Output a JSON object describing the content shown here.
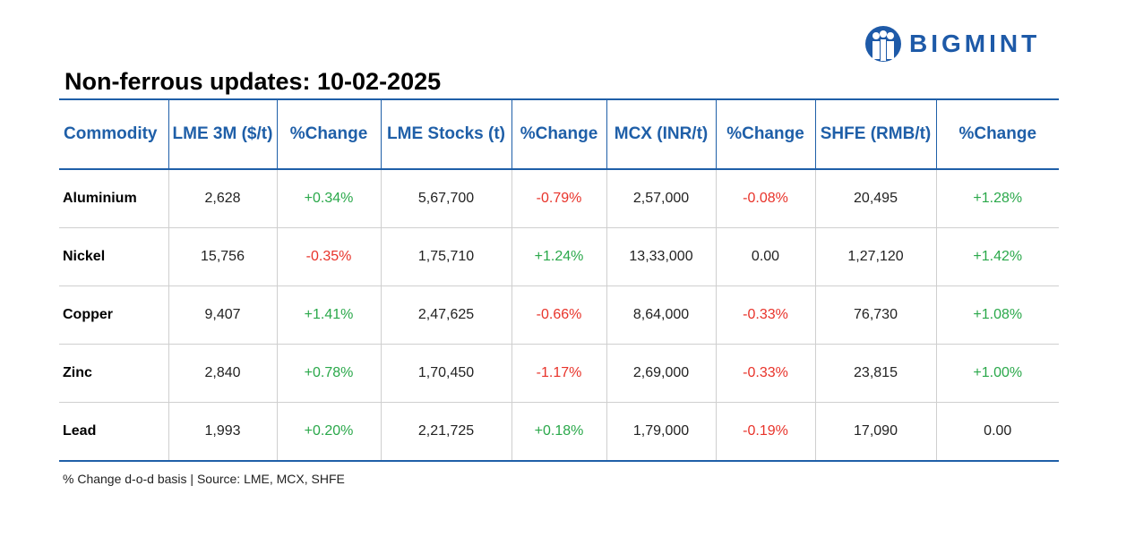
{
  "logo": "BIGMINT",
  "title": "Non-ferrous updates: 10-02-2025",
  "table": {
    "header": [
      "Commodity",
      "LME 3M ($/t)",
      "%Change",
      "LME Stocks (t)",
      "%Change",
      "MCX (INR/t)",
      "%Change",
      "SHFE (RMB/t)",
      "%Change"
    ],
    "rows": [
      [
        "Aluminium",
        "2,628",
        "+0.34%",
        "5,67,700",
        "-0.79%",
        "2,57,000",
        "-0.08%",
        "20,495",
        "+1.28%"
      ],
      [
        "Nickel",
        "15,756",
        "-0.35%",
        "1,75,710",
        "+1.24%",
        "13,33,000",
        "0.00",
        "1,27,120",
        "+1.42%"
      ],
      [
        "Copper",
        "9,407",
        "+1.41%",
        "2,47,625",
        "-0.66%",
        "8,64,000",
        "-0.33%",
        "76,730",
        "+1.08%"
      ],
      [
        "Zinc",
        "2,840",
        "+0.78%",
        "1,70,450",
        "-1.17%",
        "2,69,000",
        "-0.33%",
        "23,815",
        "+1.00%"
      ],
      [
        "Lead",
        "1,993",
        "+0.20%",
        "2,21,725",
        "+0.18%",
        "1,79,000",
        "-0.19%",
        "17,090",
        "0.00"
      ]
    ]
  },
  "footnote": "% Change d-o-d basis | Source: LME, MCX, SHFE"
}
